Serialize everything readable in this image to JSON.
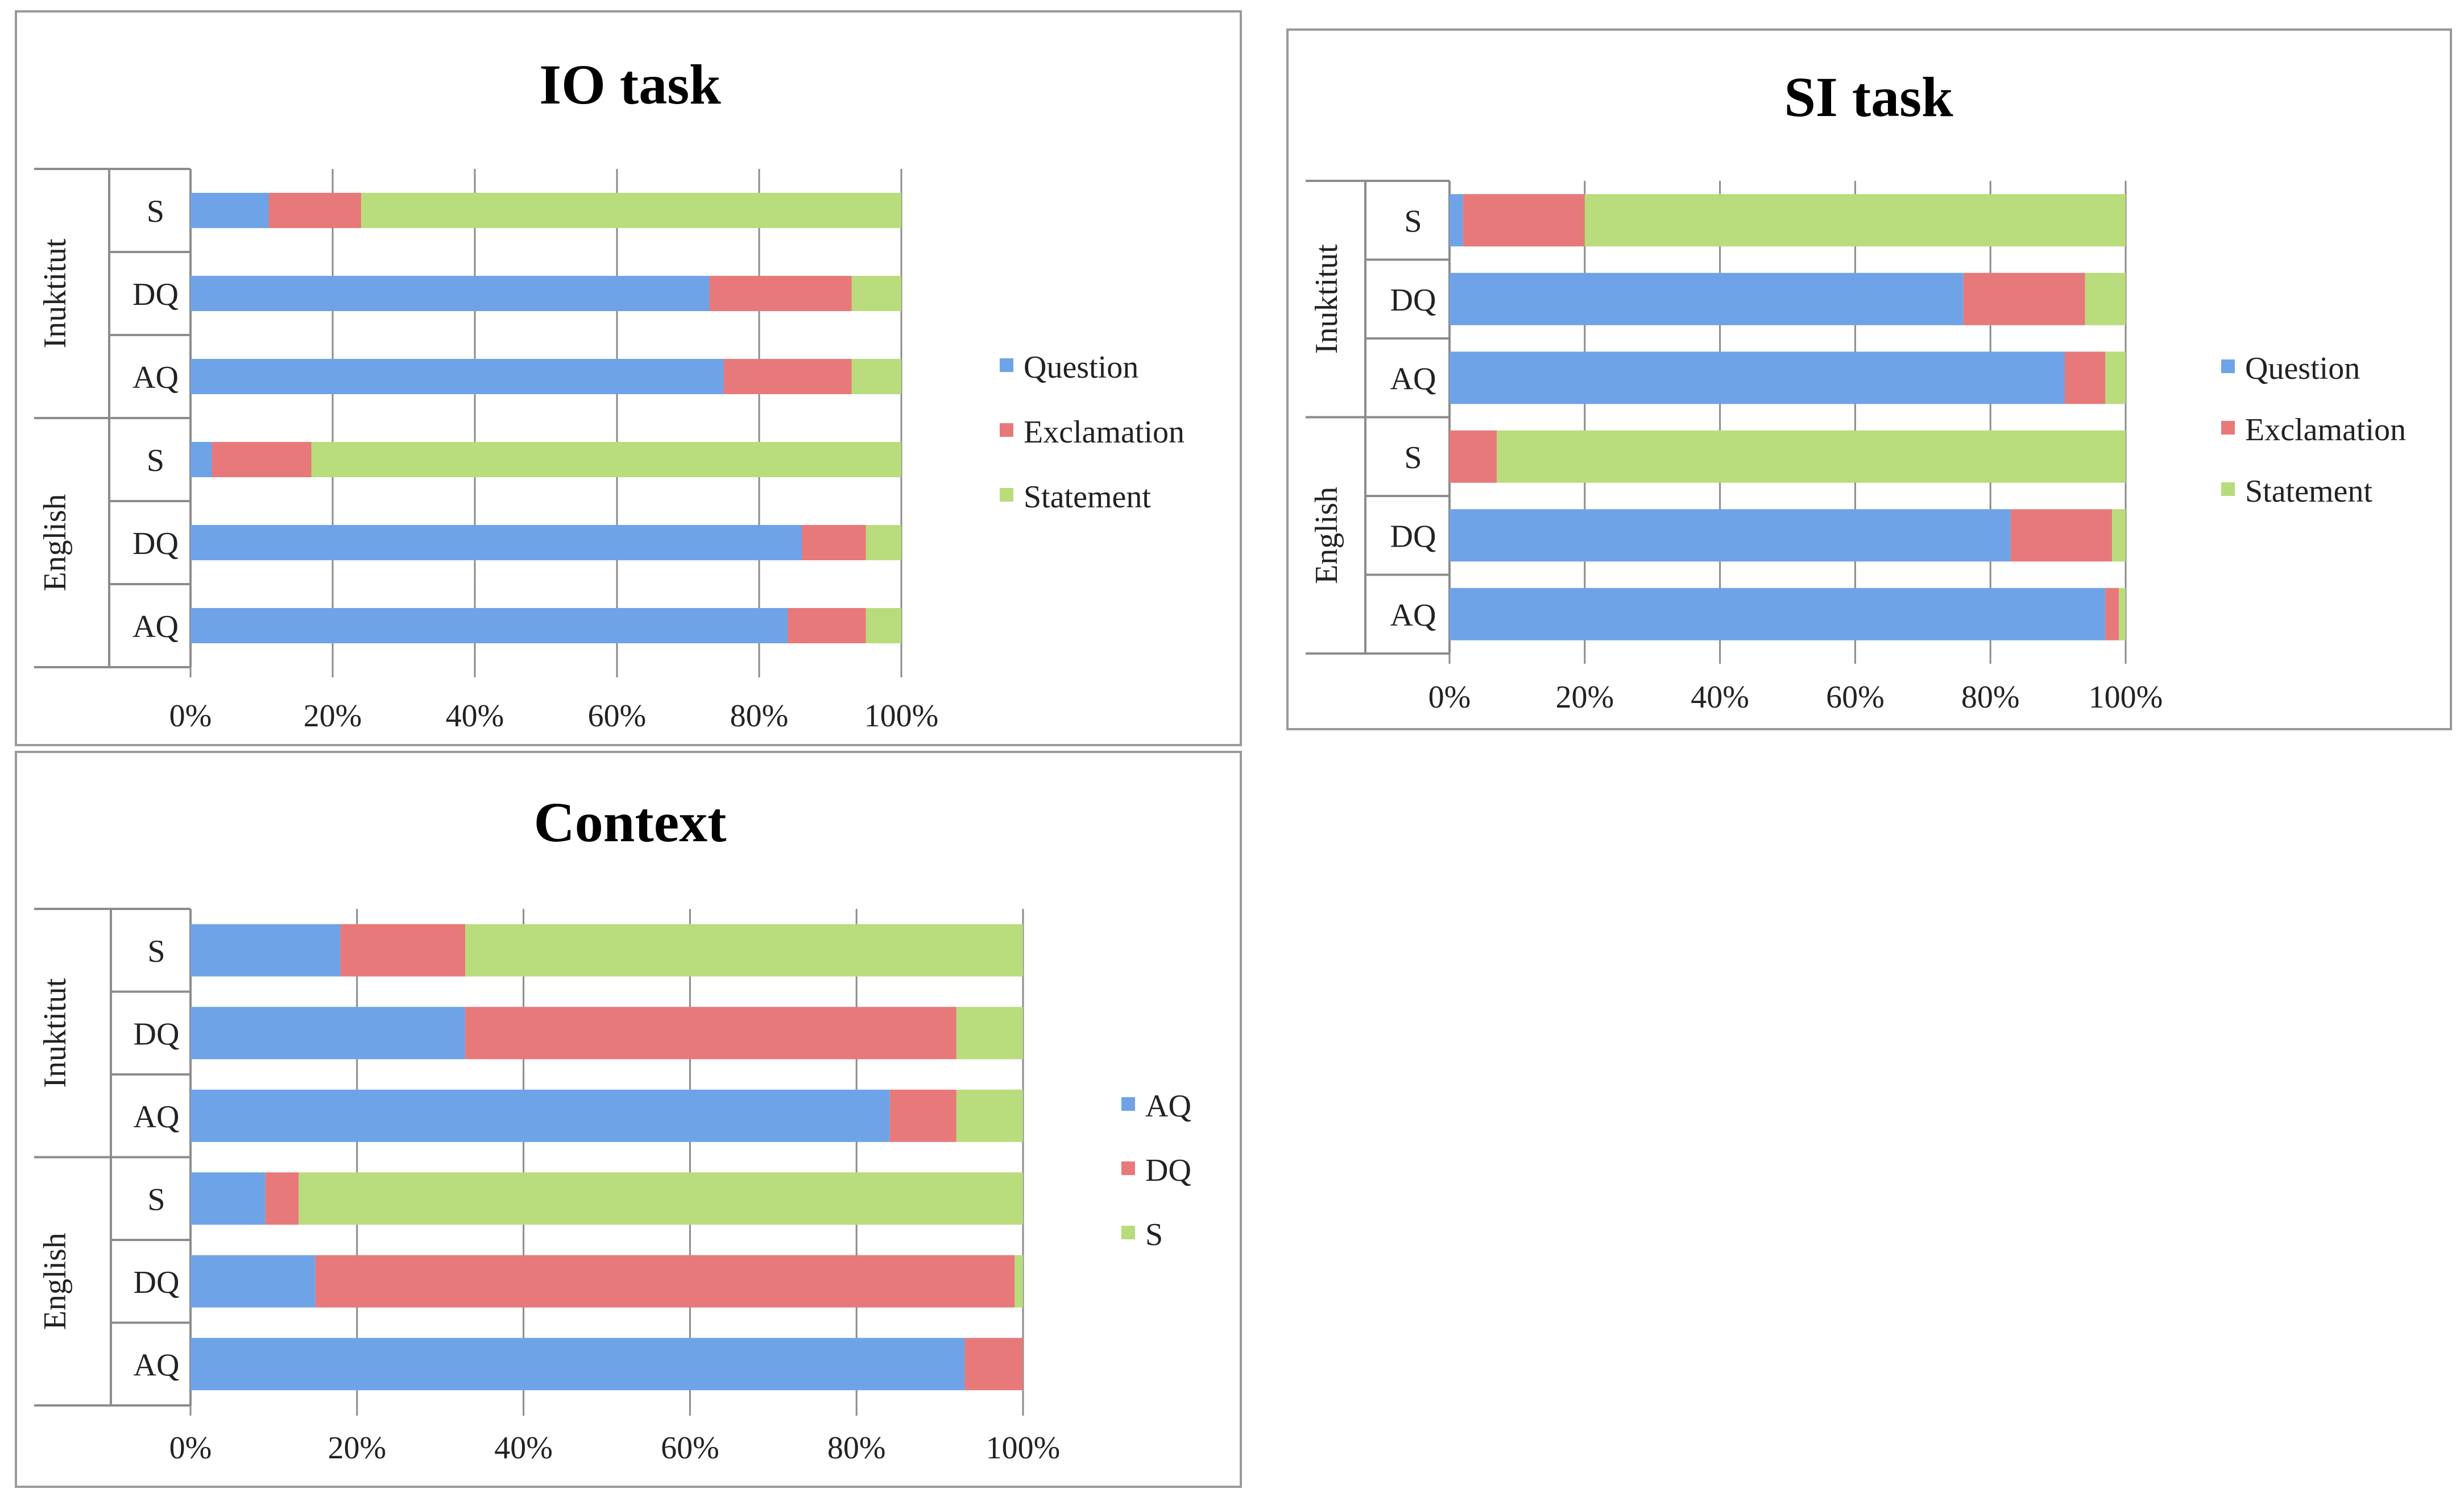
{
  "colors": {
    "blue": "#6fa3e8",
    "red": "#e8797a",
    "green": "#b9dc7c"
  },
  "chart_data": [
    {
      "id": "io",
      "type": "bar",
      "orientation": "horizontal",
      "stacked": "percent",
      "title": "IO task",
      "groups": [
        {
          "name": "Inuktitut",
          "categories": [
            "S",
            "DQ",
            "AQ"
          ]
        },
        {
          "name": "English",
          "categories": [
            "S",
            "DQ",
            "AQ"
          ]
        }
      ],
      "categories": [
        "Inuktitut S",
        "Inuktitut DQ",
        "Inuktitut AQ",
        "English S",
        "English DQ",
        "English AQ"
      ],
      "series": [
        {
          "name": "Question",
          "color": "#6fa3e8",
          "values": [
            11,
            73,
            75,
            3,
            86,
            84
          ]
        },
        {
          "name": "Exclamation",
          "color": "#e8797a",
          "values": [
            13,
            20,
            18,
            14,
            9,
            11
          ]
        },
        {
          "name": "Statement",
          "color": "#b9dc7c",
          "values": [
            76,
            7,
            7,
            83,
            5,
            5
          ]
        }
      ],
      "xticks": [
        "0%",
        "20%",
        "40%",
        "60%",
        "80%",
        "100%"
      ],
      "xlim": [
        0,
        100
      ],
      "grid": true,
      "legend": "right"
    },
    {
      "id": "si",
      "type": "bar",
      "orientation": "horizontal",
      "stacked": "percent",
      "title": "SI task",
      "groups": [
        {
          "name": "Inuktitut",
          "categories": [
            "S",
            "DQ",
            "AQ"
          ]
        },
        {
          "name": "English",
          "categories": [
            "S",
            "DQ",
            "AQ"
          ]
        }
      ],
      "categories": [
        "Inuktitut S",
        "Inuktitut DQ",
        "Inuktitut AQ",
        "English S",
        "English DQ",
        "English AQ"
      ],
      "series": [
        {
          "name": "Question",
          "color": "#6fa3e8",
          "values": [
            2,
            76,
            91,
            0,
            83,
            97
          ]
        },
        {
          "name": "Exclamation",
          "color": "#e8797a",
          "values": [
            18,
            18,
            6,
            7,
            15,
            2
          ]
        },
        {
          "name": "Statement",
          "color": "#b9dc7c",
          "values": [
            80,
            6,
            3,
            93,
            2,
            1
          ]
        }
      ],
      "xticks": [
        "0%",
        "20%",
        "40%",
        "60%",
        "80%",
        "100%"
      ],
      "xlim": [
        0,
        100
      ],
      "grid": true,
      "legend": "right"
    },
    {
      "id": "context",
      "type": "bar",
      "orientation": "horizontal",
      "stacked": "percent",
      "title": "Context",
      "groups": [
        {
          "name": "Inuktitut",
          "categories": [
            "S",
            "DQ",
            "AQ"
          ]
        },
        {
          "name": "English",
          "categories": [
            "S",
            "DQ",
            "AQ"
          ]
        }
      ],
      "categories": [
        "Inuktitut S",
        "Inuktitut DQ",
        "Inuktitut AQ",
        "English S",
        "English DQ",
        "English AQ"
      ],
      "series": [
        {
          "name": "AQ",
          "color": "#6fa3e8",
          "values": [
            18,
            33,
            84,
            9,
            15,
            93
          ]
        },
        {
          "name": "DQ",
          "color": "#e8797a",
          "values": [
            15,
            59,
            8,
            4,
            84,
            7
          ]
        },
        {
          "name": "S",
          "color": "#b9dc7c",
          "values": [
            67,
            8,
            8,
            87,
            1,
            0
          ]
        }
      ],
      "xticks": [
        "0%",
        "20%",
        "40%",
        "60%",
        "80%",
        "100%"
      ],
      "xlim": [
        0,
        100
      ],
      "grid": true,
      "legend": "right"
    }
  ]
}
